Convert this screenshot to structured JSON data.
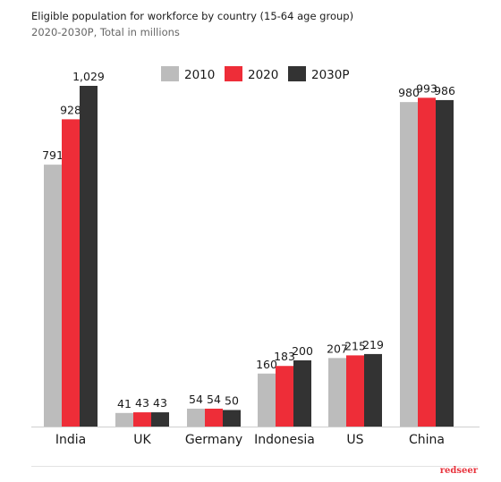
{
  "chart_data": {
    "type": "bar",
    "title": "Eligible population for workforce by country (15-64 age group)",
    "subtitle": "2020-2030P, Total in millions",
    "categories": [
      "India",
      "UK",
      "Germany",
      "Indonesia",
      "US",
      "China"
    ],
    "series": [
      {
        "name": "2010",
        "values": [
          791,
          41,
          54,
          160,
          207,
          980
        ],
        "labels": [
          "791",
          "41",
          "54",
          "160",
          "207",
          "980"
        ],
        "color": "#bcbcbc"
      },
      {
        "name": "2020",
        "values": [
          928,
          43,
          54,
          183,
          215,
          993
        ],
        "labels": [
          "928",
          "43",
          "54",
          "183",
          "215",
          "993"
        ],
        "color": "#ee2d38"
      },
      {
        "name": "2030P",
        "values": [
          1029,
          43,
          50,
          200,
          219,
          986
        ],
        "labels": [
          "1,029",
          "43",
          "50",
          "200",
          "219",
          "986"
        ],
        "color": "#333333"
      }
    ],
    "ylim": [
      0,
      1029
    ],
    "grid": false,
    "legend": "top-center"
  },
  "footer": {
    "brand": "redseer"
  }
}
